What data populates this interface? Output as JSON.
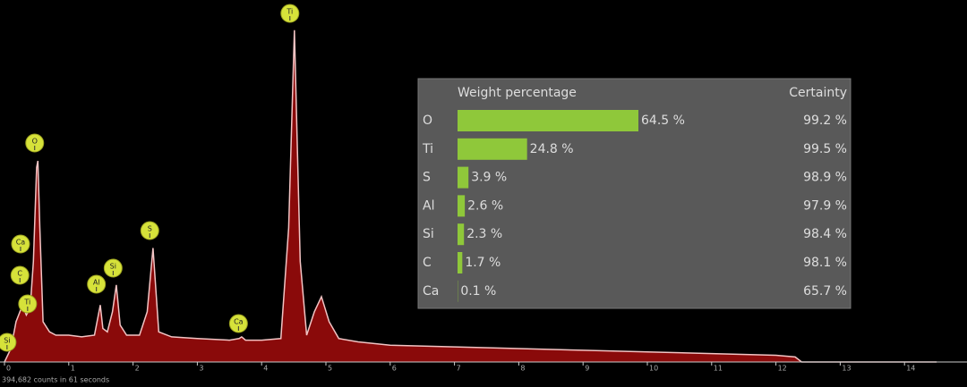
{
  "chart_data": {
    "type": "area",
    "x": [
      0,
      0.1,
      0.18,
      0.22,
      0.28,
      0.34,
      0.4,
      0.45,
      0.5,
      0.52,
      0.55,
      0.6,
      0.7,
      0.8,
      1.0,
      1.2,
      1.4,
      1.45,
      1.49,
      1.53,
      1.6,
      1.68,
      1.74,
      1.8,
      1.9,
      2.1,
      2.22,
      2.31,
      2.4,
      2.6,
      3.0,
      3.5,
      3.65,
      3.69,
      3.75,
      4.0,
      4.3,
      4.42,
      4.51,
      4.6,
      4.7,
      4.82,
      4.93,
      5.05,
      5.2,
      5.5,
      6,
      7,
      8,
      9,
      10,
      11,
      12,
      12.3,
      12.4,
      14.5
    ],
    "y": [
      0,
      4,
      12,
      14,
      17,
      14,
      16,
      30,
      58,
      60,
      40,
      12,
      9,
      8,
      8,
      7.5,
      8,
      13,
      17,
      10,
      9,
      15,
      23,
      11,
      8,
      8,
      15,
      34,
      9,
      7.5,
      7,
      6.5,
      7,
      7.5,
      6.5,
      6.5,
      7,
      40,
      99,
      30,
      8,
      15,
      19.5,
      12,
      7,
      6,
      5,
      4.5,
      4,
      3.5,
      3,
      2.5,
      2,
      1.5,
      0,
      0
    ],
    "color": "#8a0a0a",
    "xlim": [
      0,
      14.9
    ],
    "ylim": [
      0,
      100
    ],
    "xticks": [
      0,
      1,
      2,
      3,
      4,
      5,
      6,
      7,
      8,
      9,
      10,
      11,
      12,
      13,
      14
    ],
    "peaks": [
      {
        "label": "Ti",
        "x": 4.44
      },
      {
        "label": "O",
        "x": 0.47
      },
      {
        "label": "Ca",
        "x": 0.25
      },
      {
        "label": "C",
        "x": 0.24
      },
      {
        "label": "Ti",
        "x": 0.36
      },
      {
        "label": "Si",
        "x": 0.04
      },
      {
        "label": "Al",
        "x": 1.43
      },
      {
        "label": "Si",
        "x": 1.69
      },
      {
        "label": "S",
        "x": 2.26
      },
      {
        "label": "Ca",
        "x": 3.64
      }
    ],
    "footer": "394,682 counts in 61 seconds"
  },
  "table": {
    "weight_header": "Weight percentage",
    "certainty_header": "Certainty",
    "elements": [
      "O",
      "Ti",
      "S",
      "Al",
      "Si",
      "C",
      "Ca"
    ],
    "weight": {
      "values": [
        64.5,
        24.8,
        3.9,
        2.6,
        2.3,
        1.7,
        0.1
      ],
      "value_labels": [
        "64.5 %",
        "24.8 %",
        "3.9 %",
        "2.6 %",
        "2.3 %",
        "1.7 %",
        "0.1 %"
      ],
      "color": "#8fc83a"
    },
    "certainty": [
      "99.2 %",
      "99.5 %",
      "98.9 %",
      "97.9 %",
      "98.4 %",
      "98.1 %",
      "65.7 %"
    ]
  }
}
